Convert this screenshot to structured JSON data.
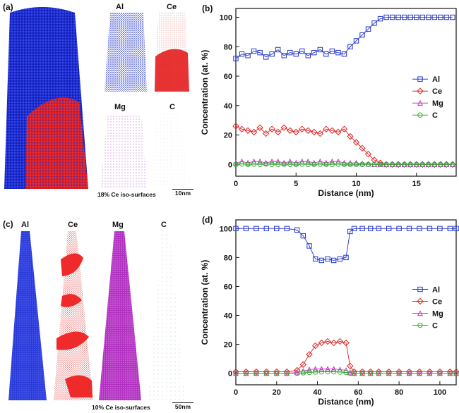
{
  "panels": {
    "a": {
      "label": "(a)",
      "element_labels": [
        "Al",
        "Ce",
        "Mg",
        "C"
      ],
      "iso_note": "18% Ce iso-surfaces",
      "scale_bar": "10nm"
    },
    "c": {
      "label": "(c)",
      "element_labels": [
        "Al",
        "Ce",
        "Mg",
        "C"
      ],
      "iso_note": "10% Ce iso-surfaces",
      "scale_bar": "50nm"
    }
  },
  "colors": {
    "Al": "#2233cc",
    "Ce": "#e02020",
    "Mg": "#cc33cc",
    "C": "#33aa33"
  },
  "chart_data": [
    {
      "panel_label": "(b)",
      "type": "line",
      "title": "",
      "xlabel": "Distance (nm)",
      "ylabel": "Concentration (at. %)",
      "xlim": [
        0,
        18.3
      ],
      "ylim": [
        -8,
        106
      ],
      "xticks": [
        0,
        5,
        10,
        15
      ],
      "yticks": [
        0,
        20,
        40,
        60,
        80,
        100
      ],
      "legend_position": "right",
      "x": [
        0,
        0.5,
        1,
        1.5,
        2,
        2.5,
        3,
        3.5,
        4,
        4.5,
        5,
        5.5,
        6,
        6.5,
        7,
        7.5,
        8,
        8.5,
        9,
        9.5,
        10,
        10.5,
        11,
        11.5,
        12,
        12.5,
        13,
        13.5,
        14,
        14.5,
        15,
        15.5,
        16,
        16.5,
        17,
        17.5,
        18
      ],
      "series": [
        {
          "name": "Al",
          "marker": "square",
          "color": "#2233cc",
          "values": [
            72,
            75,
            74,
            77,
            76,
            73,
            75,
            78,
            74,
            76,
            75,
            77,
            74,
            76,
            78,
            75,
            77,
            76,
            75,
            80,
            84,
            88,
            92,
            96,
            99,
            100,
            100,
            100,
            100,
            100,
            100,
            100,
            100,
            100,
            100,
            100,
            100
          ]
        },
        {
          "name": "Ce",
          "marker": "diamond",
          "color": "#e02020",
          "values": [
            26,
            24,
            23,
            22,
            25,
            21,
            24,
            22,
            25,
            23,
            22,
            24,
            23,
            22,
            21,
            24,
            23,
            22,
            24,
            19,
            15,
            11,
            7,
            3,
            1,
            0,
            0,
            0,
            0,
            0,
            0,
            0,
            0,
            0,
            0,
            0,
            0
          ]
        },
        {
          "name": "Mg",
          "marker": "triangle",
          "color": "#cc33cc",
          "values": [
            1,
            2,
            1,
            2,
            2,
            1,
            2,
            2,
            1,
            2,
            1,
            2,
            2,
            1,
            2,
            1,
            2,
            2,
            1,
            1,
            1,
            0.5,
            0.3,
            0,
            0,
            0,
            0,
            0,
            0,
            0,
            0,
            0,
            0,
            0,
            0,
            0,
            0
          ]
        },
        {
          "name": "C",
          "marker": "circle",
          "color": "#33aa33",
          "values": [
            0,
            0.3,
            0,
            0.2,
            0,
            0.3,
            0,
            0,
            0.2,
            0,
            0,
            0.2,
            0,
            0,
            0.2,
            0,
            0,
            0.2,
            0,
            0,
            0,
            0,
            0,
            0,
            0,
            0,
            0,
            0,
            0,
            0,
            0,
            0,
            0,
            0,
            0,
            0,
            0
          ]
        }
      ]
    },
    {
      "panel_label": "(d)",
      "type": "line",
      "title": "",
      "xlabel": "Distance (nm)",
      "ylabel": "Concentration (at. %)",
      "xlim": [
        0,
        108
      ],
      "ylim": [
        -8,
        106
      ],
      "xticks": [
        0,
        20,
        40,
        60,
        80,
        100
      ],
      "yticks": [
        0,
        20,
        40,
        60,
        80,
        100
      ],
      "legend_position": "right",
      "x": [
        0,
        5,
        10,
        15,
        20,
        25,
        30,
        33,
        36,
        39,
        42,
        45,
        48,
        51,
        54,
        56,
        58,
        62,
        66,
        70,
        75,
        80,
        85,
        90,
        95,
        100,
        105,
        108
      ],
      "series": [
        {
          "name": "Al",
          "marker": "square",
          "color": "#2233cc",
          "values": [
            100,
            100,
            100,
            100,
            100,
            100,
            99,
            95,
            88,
            79,
            78,
            79,
            78,
            79,
            80,
            98,
            100,
            100,
            100,
            100,
            100,
            100,
            100,
            100,
            100,
            100,
            100,
            100
          ]
        },
        {
          "name": "Ce",
          "marker": "diamond",
          "color": "#e02020",
          "values": [
            1,
            1,
            1,
            1,
            1,
            1,
            2,
            6,
            13,
            19,
            21,
            22,
            21,
            22,
            21,
            5,
            1,
            1,
            1,
            1,
            1,
            1,
            1,
            1,
            1,
            1,
            1,
            1
          ]
        },
        {
          "name": "Mg",
          "marker": "triangle",
          "color": "#cc33cc",
          "values": [
            0,
            0,
            0,
            0,
            0,
            0,
            0.5,
            1.5,
            2.5,
            3,
            3,
            3,
            3,
            2.5,
            2,
            0.5,
            0,
            0,
            0,
            0,
            0,
            0,
            0,
            0,
            0,
            0,
            0,
            0
          ]
        },
        {
          "name": "C",
          "marker": "circle",
          "color": "#33aa33",
          "values": [
            0,
            0,
            0,
            0,
            0,
            0,
            0,
            0.3,
            0.5,
            0.8,
            1,
            1,
            1,
            0.8,
            0.5,
            0,
            0,
            0,
            0,
            0,
            0,
            0,
            0,
            0,
            0,
            0,
            0,
            0
          ]
        }
      ]
    }
  ]
}
